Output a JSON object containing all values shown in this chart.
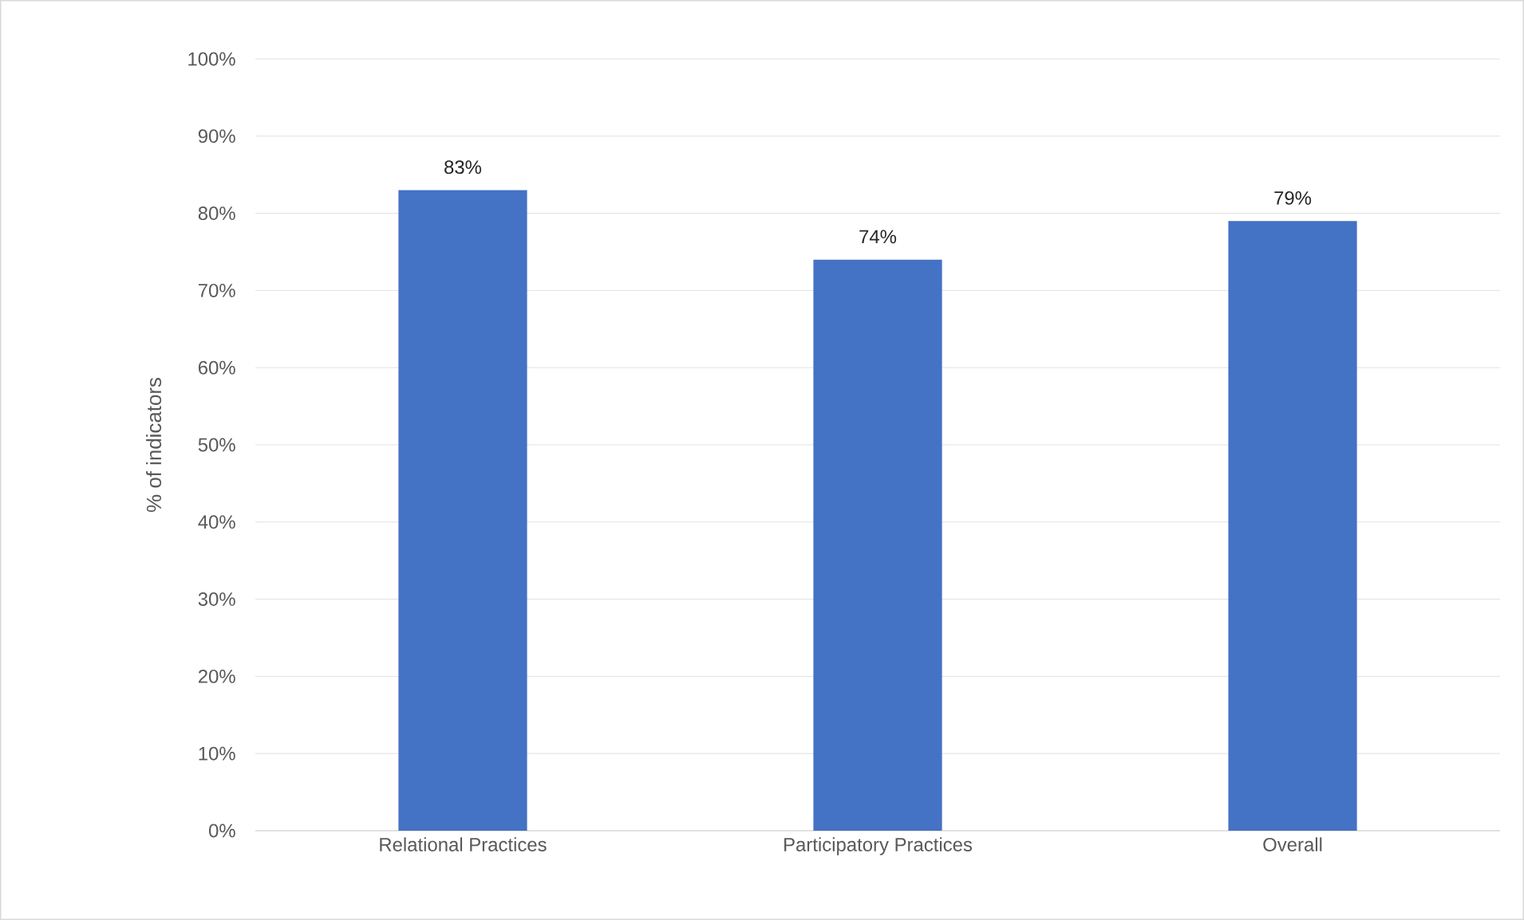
{
  "chart_data": {
    "type": "bar",
    "ylabel": "% of indicators",
    "categories": [
      "Relational Practices",
      "Participatory Practices",
      "Overall"
    ],
    "values": [
      83,
      74,
      79
    ],
    "value_labels": [
      "83%",
      "74%",
      "79%"
    ],
    "color": "#4472c4",
    "ylim": [
      0,
      100
    ],
    "yticks": [
      {
        "value": 0,
        "label": "0%"
      },
      {
        "value": 10,
        "label": "10%"
      },
      {
        "value": 20,
        "label": "20%"
      },
      {
        "value": 30,
        "label": "30%"
      },
      {
        "value": 40,
        "label": "40%"
      },
      {
        "value": 50,
        "label": "50%"
      },
      {
        "value": 60,
        "label": "60%"
      },
      {
        "value": 70,
        "label": "70%"
      },
      {
        "value": 80,
        "label": "80%"
      },
      {
        "value": 90,
        "label": "90%"
      },
      {
        "value": 100,
        "label": "100%"
      }
    ],
    "grid": "y"
  }
}
